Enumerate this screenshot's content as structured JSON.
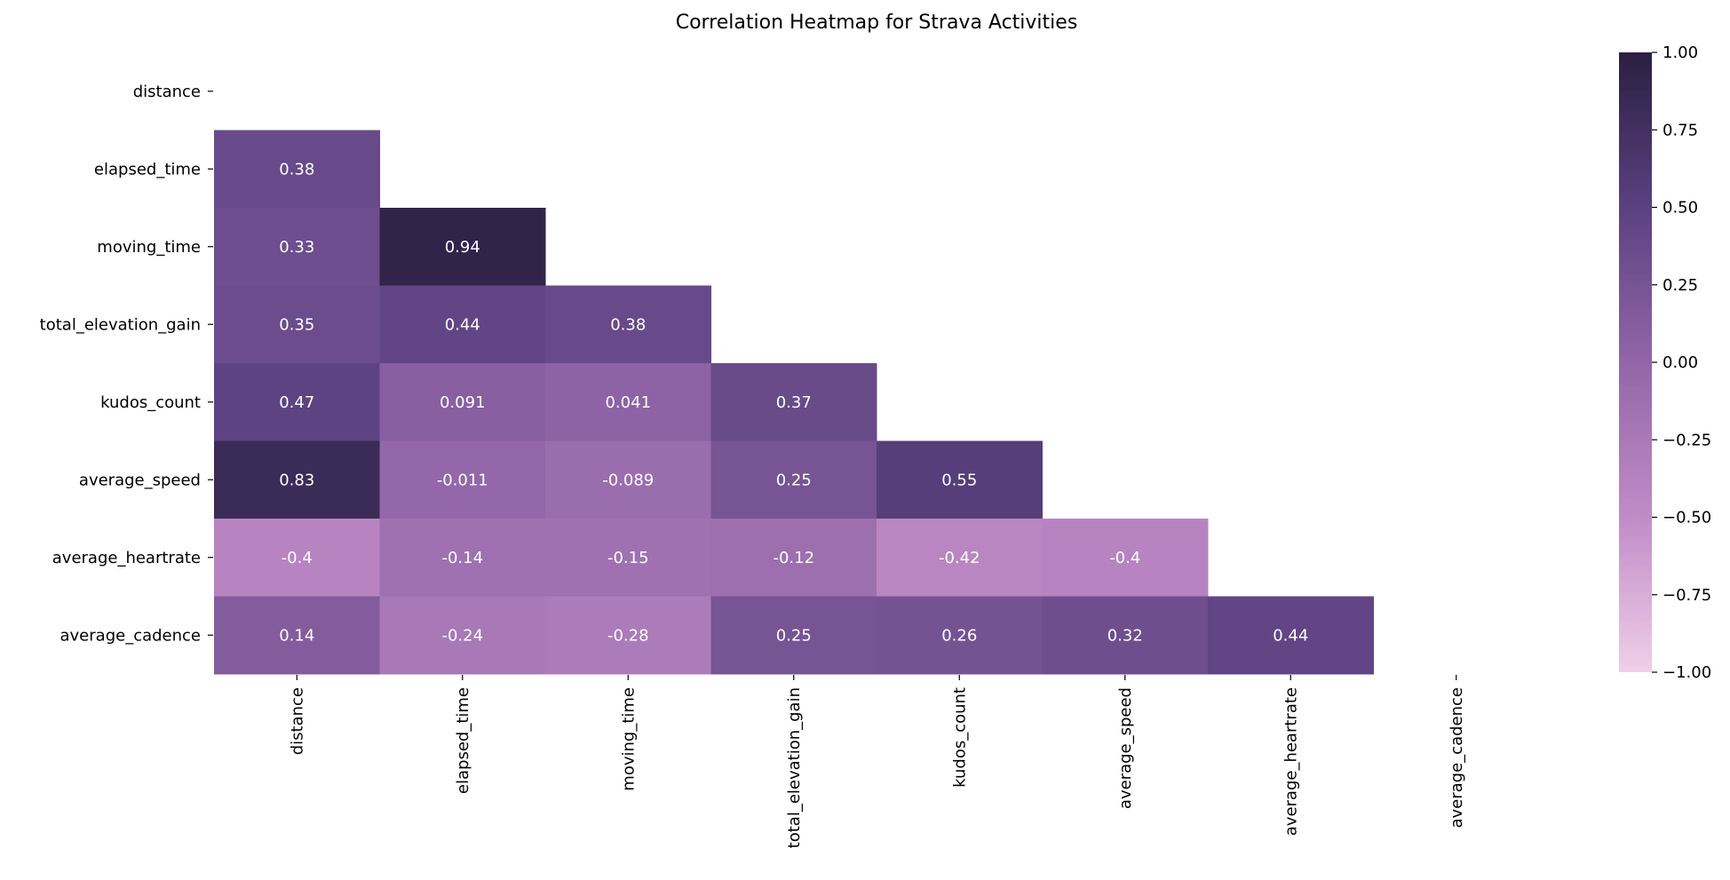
{
  "chart_data": {
    "type": "heatmap",
    "title": "Correlation Heatmap for Strava Activities",
    "xlabel": "",
    "ylabel": "",
    "mask": "upper-triangle-including-diagonal",
    "row_labels": [
      "distance",
      "elapsed_time",
      "moving_time",
      "total_elevation_gain",
      "kudos_count",
      "average_speed",
      "average_heartrate",
      "average_cadence"
    ],
    "col_labels": [
      "distance",
      "elapsed_time",
      "moving_time",
      "total_elevation_gain",
      "kudos_count",
      "average_speed",
      "average_heartrate",
      "average_cadence"
    ],
    "values": [
      [
        null,
        null,
        null,
        null,
        null,
        null,
        null,
        null
      ],
      [
        0.38,
        null,
        null,
        null,
        null,
        null,
        null,
        null
      ],
      [
        0.33,
        0.94,
        null,
        null,
        null,
        null,
        null,
        null
      ],
      [
        0.35,
        0.44,
        0.38,
        null,
        null,
        null,
        null,
        null
      ],
      [
        0.47,
        0.091,
        0.041,
        0.37,
        null,
        null,
        null,
        null
      ],
      [
        0.83,
        -0.011,
        -0.089,
        0.25,
        0.55,
        null,
        null,
        null
      ],
      [
        -0.4,
        -0.14,
        -0.15,
        -0.12,
        -0.42,
        -0.4,
        null,
        null
      ],
      [
        0.14,
        -0.24,
        -0.28,
        0.25,
        0.26,
        0.32,
        0.44,
        null
      ]
    ],
    "value_labels": [
      [
        null,
        null,
        null,
        null,
        null,
        null,
        null,
        null
      ],
      [
        "0.38",
        null,
        null,
        null,
        null,
        null,
        null,
        null
      ],
      [
        "0.33",
        "0.94",
        null,
        null,
        null,
        null,
        null,
        null
      ],
      [
        "0.35",
        "0.44",
        "0.38",
        null,
        null,
        null,
        null,
        null
      ],
      [
        "0.47",
        "0.091",
        "0.041",
        "0.37",
        null,
        null,
        null,
        null
      ],
      [
        "0.83",
        "-0.011",
        "-0.089",
        "0.25",
        "0.55",
        null,
        null,
        null
      ],
      [
        "-0.4",
        "-0.14",
        "-0.15",
        "-0.12",
        "-0.42",
        "-0.4",
        null,
        null
      ],
      [
        "0.14",
        "-0.24",
        "-0.28",
        "0.25",
        "0.26",
        "0.32",
        "0.44",
        null
      ]
    ],
    "colorbar": {
      "range": [
        -1.0,
        1.0
      ],
      "ticks": [
        1.0,
        0.75,
        0.5,
        0.25,
        0.0,
        -0.25,
        -0.5,
        -0.75,
        -1.0
      ],
      "tick_labels": [
        "1.00",
        "0.75",
        "0.50",
        "0.25",
        "0.00",
        "−0.25",
        "−0.50",
        "−0.75",
        "−1.00"
      ],
      "color_stops": [
        {
          "v": -1.0,
          "color": "#f0cfe8"
        },
        {
          "v": -0.5,
          "color": "#c08cc7"
        },
        {
          "v": 0.0,
          "color": "#9266a8"
        },
        {
          "v": 0.5,
          "color": "#5b4180"
        },
        {
          "v": 1.0,
          "color": "#2b1f42"
        }
      ]
    }
  }
}
